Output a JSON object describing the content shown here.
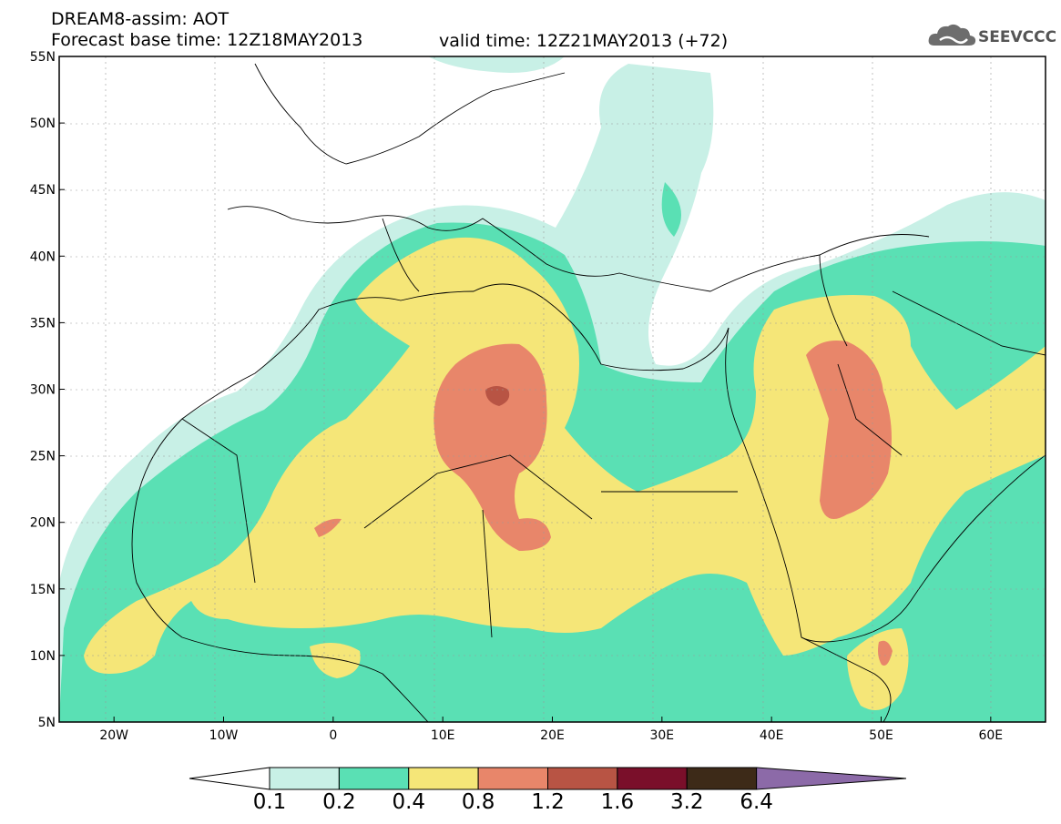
{
  "header": {
    "title_line1": "DREAM8-assim: AOT",
    "title_line2": "Forecast base time: 12Z18MAY2013",
    "valid_time": "valid time: 12Z21MAY2013 (+72)",
    "logo_text": "SEEVCCC"
  },
  "map": {
    "lat_labels": [
      "55N",
      "50N",
      "45N",
      "40N",
      "35N",
      "30N",
      "25N",
      "20N",
      "15N",
      "10N",
      "5N"
    ],
    "lon_labels": [
      "20W",
      "10W",
      "0",
      "10E",
      "20E",
      "30E",
      "40E",
      "50E",
      "60E"
    ],
    "lon_range": [
      -25,
      65
    ],
    "lat_range": [
      5,
      55
    ]
  },
  "legend": {
    "thresholds": [
      "0.1",
      "0.2",
      "0.4",
      "0.8",
      "1.2",
      "1.6",
      "3.2",
      "6.4"
    ],
    "colors": [
      "#c8f0e6",
      "#5ae0b4",
      "#f5e678",
      "#e8866a",
      "#b85444",
      "#7a0f2a",
      "#3d2a18",
      "#8c6aa8"
    ],
    "under_color": "#ffffff"
  }
}
